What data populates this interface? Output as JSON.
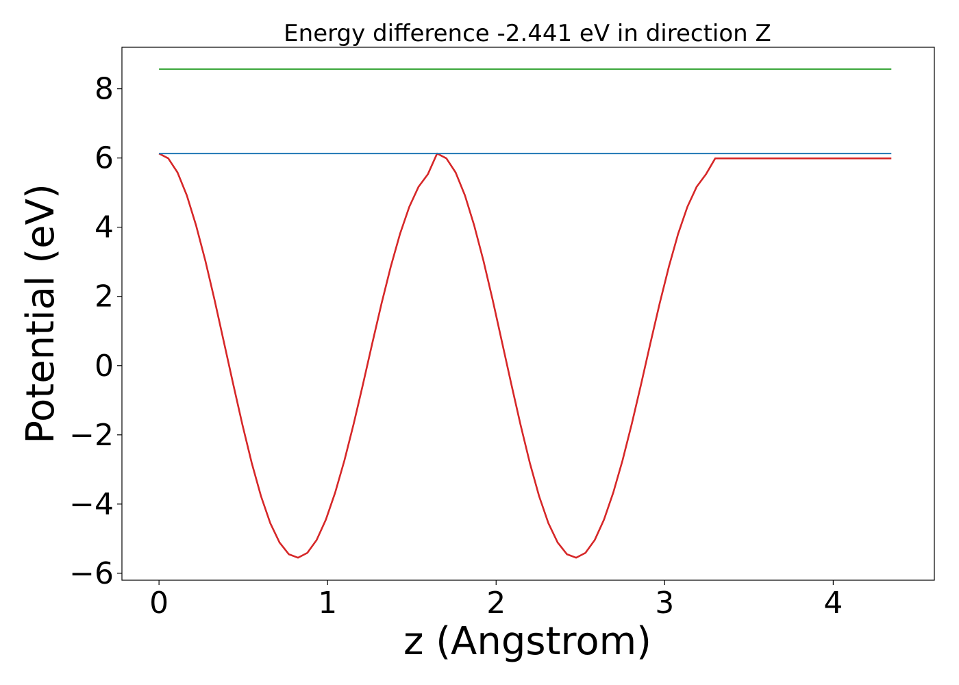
{
  "chart_data": {
    "type": "line",
    "title": "Energy difference -2.441 eV in direction Z",
    "xlabel": "z (Angstrom)",
    "ylabel": "Potential (eV)",
    "xlim": [
      -0.22,
      4.6
    ],
    "ylim": [
      -6.2,
      9.2
    ],
    "x_ticks": [
      0,
      1,
      2,
      3,
      4
    ],
    "x_tick_labels": [
      "0",
      "1",
      "2",
      "3",
      "4"
    ],
    "y_ticks": [
      -6,
      -4,
      -2,
      0,
      2,
      4,
      6,
      8
    ],
    "y_tick_labels": [
      "−6",
      "−4",
      "−2",
      "0",
      "2",
      "4",
      "6",
      "8"
    ],
    "grid": false,
    "legend": "none",
    "series": [
      {
        "color": "#d62728",
        "x": [
          0.0,
          0.055,
          0.11,
          0.165,
          0.22,
          0.275,
          0.33,
          0.385,
          0.44,
          0.495,
          0.55,
          0.605,
          0.66,
          0.715,
          0.77,
          0.825,
          0.88,
          0.935,
          0.99,
          1.045,
          1.1,
          1.155,
          1.21,
          1.265,
          1.32,
          1.375,
          1.43,
          1.485,
          1.54,
          1.595,
          1.65,
          1.705,
          1.76,
          1.815,
          1.87,
          1.925,
          1.98,
          2.035,
          2.09,
          2.145,
          2.2,
          2.255,
          2.31,
          2.365,
          2.42,
          2.475,
          2.53,
          2.585,
          2.64,
          2.695,
          2.75,
          2.805,
          2.86,
          2.915,
          2.97,
          3.025,
          3.08,
          3.135,
          3.19,
          3.245,
          3.3,
          3.355,
          3.41,
          3.465,
          3.52,
          3.575,
          3.63,
          3.685,
          3.74,
          3.795,
          3.85,
          3.905,
          3.96,
          4.015,
          4.07,
          4.125,
          4.18,
          4.235,
          4.29,
          4.345
        ],
        "y": [
          6.13,
          5.99,
          5.58,
          4.92,
          4.05,
          3.03,
          1.89,
          0.68,
          -0.53,
          -1.71,
          -2.81,
          -3.77,
          -4.55,
          -5.11,
          -5.45,
          -5.55,
          -5.41,
          -5.04,
          -4.45,
          -3.67,
          -2.74,
          -1.68,
          -0.54,
          0.64,
          1.79,
          2.86,
          3.81,
          4.59,
          5.17,
          5.53,
          6.13,
          5.99,
          5.58,
          4.92,
          4.05,
          3.03,
          1.89,
          0.68,
          -0.53,
          -1.71,
          -2.81,
          -3.77,
          -4.55,
          -5.11,
          -5.45,
          -5.55,
          -5.41,
          -5.04,
          -4.45,
          -3.67,
          -2.74,
          -1.68,
          -0.54,
          0.64,
          1.79,
          2.86,
          3.81,
          4.59,
          5.17,
          5.53,
          5.99,
          5.99,
          5.99,
          5.99,
          5.99,
          5.99,
          5.99,
          5.99,
          5.99,
          5.99,
          5.99,
          5.99,
          5.99,
          5.99,
          5.99,
          5.99,
          5.99,
          5.99,
          5.99,
          5.99
        ]
      },
      {
        "color": "#1f77b4",
        "x": [
          0.0,
          4.345
        ],
        "y": [
          6.13,
          6.13
        ]
      },
      {
        "color": "#2ca02c",
        "x": [
          0.0,
          4.345
        ],
        "y": [
          8.57,
          8.57
        ]
      }
    ]
  }
}
